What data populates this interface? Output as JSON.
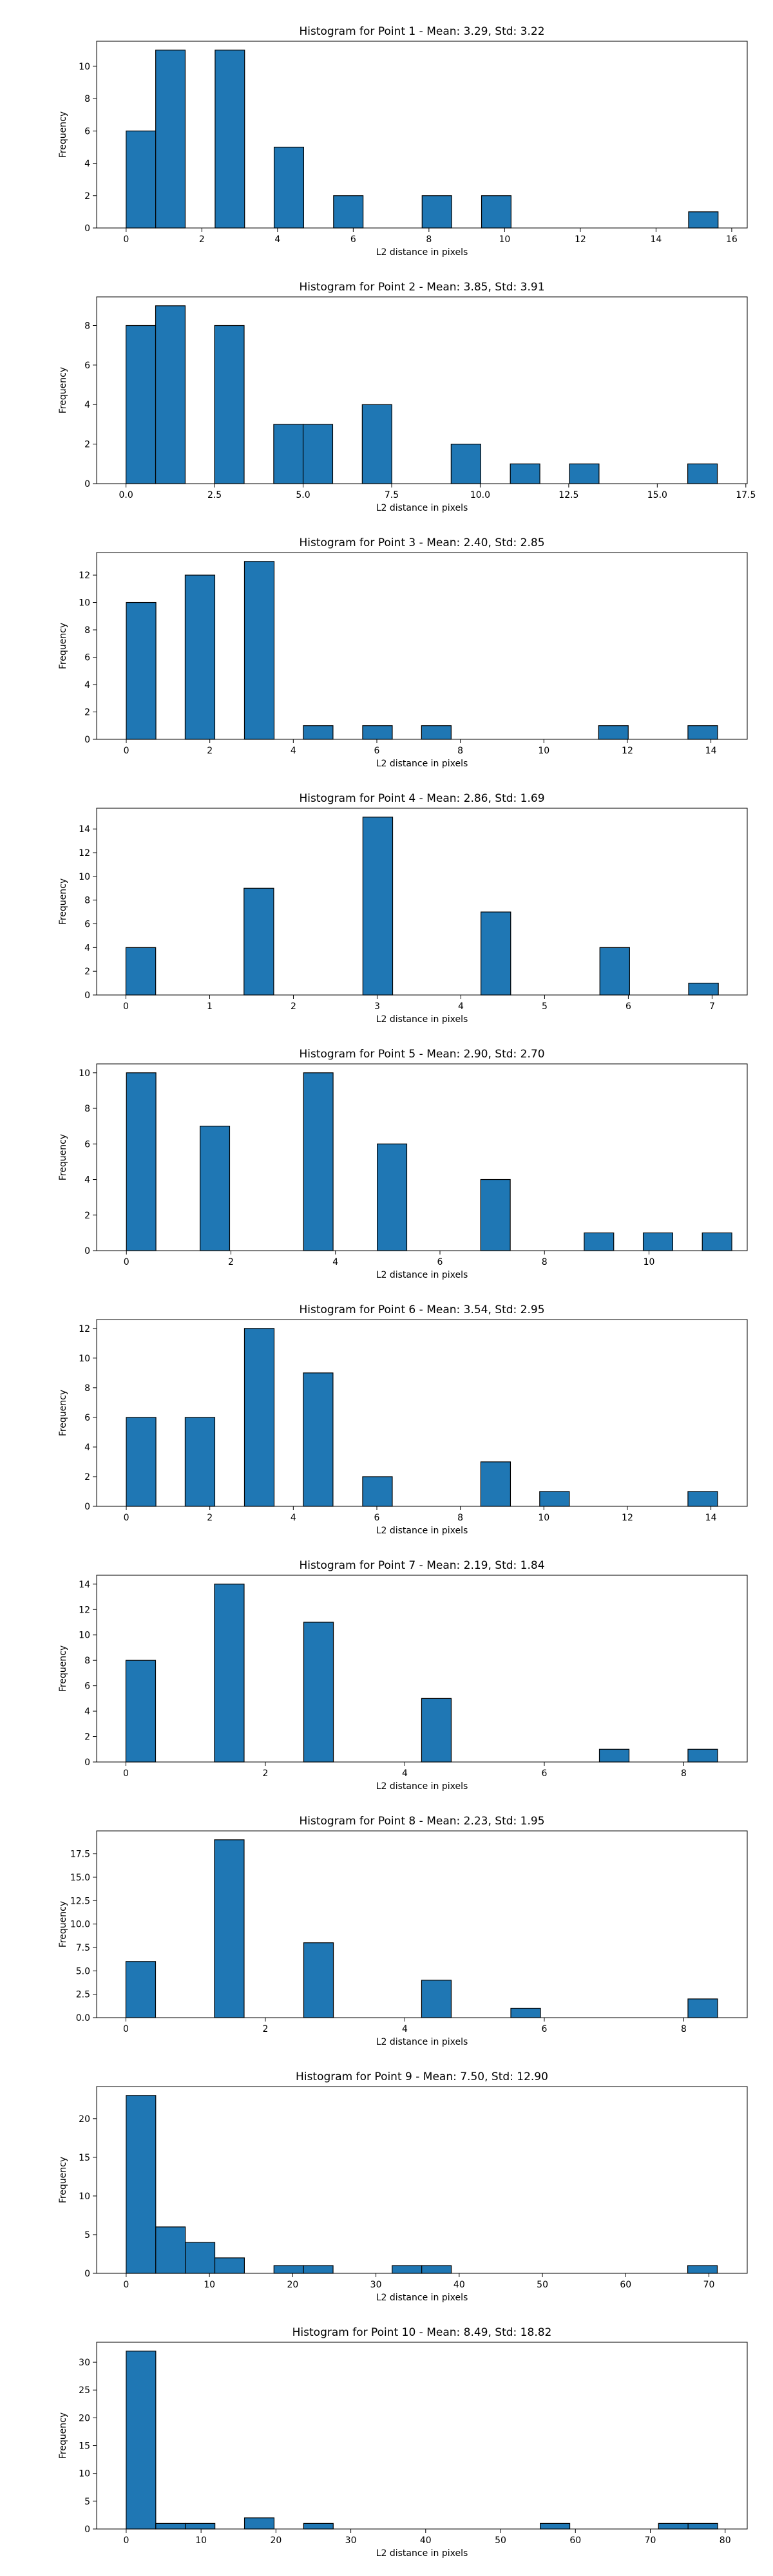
{
  "bar_color": "#1f77b4",
  "edge_color": "#000000",
  "chart_data": [
    {
      "type": "bar",
      "title": "Histogram for Point 1 - Mean: 3.29, Std: 3.22",
      "xlabel": "L2 distance in pixels",
      "ylabel": "Frequency",
      "xlim": [
        -0.78,
        16.41
      ],
      "ylim": [
        0,
        11.55
      ],
      "xticks": [
        0,
        2,
        4,
        6,
        8,
        10,
        12,
        14,
        16
      ],
      "yticks": [
        0,
        2,
        4,
        6,
        8,
        10
      ],
      "bin_width": 0.78,
      "bins": [
        [
          0,
          6
        ],
        [
          0.78,
          11
        ],
        [
          2.35,
          11
        ],
        [
          3.91,
          5
        ],
        [
          5.48,
          2
        ],
        [
          7.82,
          2
        ],
        [
          9.39,
          2
        ],
        [
          14.86,
          1
        ]
      ]
    },
    {
      "type": "bar",
      "title": "Histogram for Point 2 - Mean: 3.85, Std: 3.91",
      "xlabel": "L2 distance in pixels",
      "ylabel": "Frequency",
      "xlim": [
        -0.83,
        17.54
      ],
      "ylim": [
        0,
        9.45
      ],
      "xticks": [
        0.0,
        2.5,
        5.0,
        7.5,
        10.0,
        12.5,
        15.0,
        17.5
      ],
      "xtick_labels": [
        "0.0",
        "2.5",
        "5.0",
        "7.5",
        "10.0",
        "12.5",
        "15.0",
        "17.5"
      ],
      "yticks": [
        0,
        2,
        4,
        6,
        8
      ],
      "bin_width": 0.835,
      "bins": [
        [
          0,
          8
        ],
        [
          0.835,
          9
        ],
        [
          2.5,
          8
        ],
        [
          4.17,
          3
        ],
        [
          5.0,
          3
        ],
        [
          6.67,
          4
        ],
        [
          9.18,
          2
        ],
        [
          10.85,
          1
        ],
        [
          12.52,
          1
        ],
        [
          15.86,
          1
        ]
      ]
    },
    {
      "type": "bar",
      "title": "Histogram for Point 3 - Mean: 2.40, Std: 2.85",
      "xlabel": "L2 distance in pixels",
      "ylabel": "Frequency",
      "xlim": [
        -0.71,
        14.87
      ],
      "ylim": [
        0,
        13.65
      ],
      "xticks": [
        0,
        2,
        4,
        6,
        8,
        10,
        12,
        14
      ],
      "yticks": [
        0,
        2,
        4,
        6,
        8,
        10,
        12
      ],
      "bin_width": 0.71,
      "bins": [
        [
          0,
          10
        ],
        [
          1.41,
          12
        ],
        [
          2.83,
          13
        ],
        [
          4.24,
          1
        ],
        [
          5.66,
          1
        ],
        [
          7.07,
          1
        ],
        [
          11.31,
          1
        ],
        [
          13.45,
          1
        ]
      ]
    },
    {
      "type": "bar",
      "title": "Histogram for Point 4 - Mean: 2.86, Std: 1.69",
      "xlabel": "L2 distance in pixels",
      "ylabel": "Frequency",
      "xlim": [
        -0.35,
        7.42
      ],
      "ylim": [
        0,
        15.75
      ],
      "xticks": [
        0,
        1,
        2,
        3,
        4,
        5,
        6,
        7
      ],
      "yticks": [
        0,
        2,
        4,
        6,
        8,
        10,
        12,
        14
      ],
      "bin_width": 0.355,
      "bins": [
        [
          0,
          4
        ],
        [
          1.41,
          9
        ],
        [
          2.83,
          15
        ],
        [
          4.24,
          7
        ],
        [
          5.66,
          4
        ],
        [
          6.72,
          1
        ]
      ]
    },
    {
      "type": "bar",
      "title": "Histogram for Point 5 - Mean: 2.90, Std: 2.70",
      "xlabel": "L2 distance in pixels",
      "ylabel": "Frequency",
      "xlim": [
        -0.57,
        11.88
      ],
      "ylim": [
        0,
        10.5
      ],
      "xticks": [
        0,
        2,
        4,
        6,
        8,
        10
      ],
      "yticks": [
        0,
        2,
        4,
        6,
        8,
        10
      ],
      "bin_width": 0.565,
      "bins": [
        [
          0,
          10
        ],
        [
          1.41,
          7
        ],
        [
          3.39,
          10
        ],
        [
          4.8,
          6
        ],
        [
          6.78,
          4
        ],
        [
          8.76,
          1
        ],
        [
          9.89,
          1
        ],
        [
          11.02,
          1
        ]
      ]
    },
    {
      "type": "bar",
      "title": "Histogram for Point 6 - Mean: 3.54, Std: 2.95",
      "xlabel": "L2 distance in pixels",
      "ylabel": "Frequency",
      "xlim": [
        -0.71,
        14.87
      ],
      "ylim": [
        0,
        12.6
      ],
      "xticks": [
        0,
        2,
        4,
        6,
        8,
        10,
        12,
        14
      ],
      "yticks": [
        0,
        2,
        4,
        6,
        8,
        10,
        12
      ],
      "bin_width": 0.71,
      "bins": [
        [
          0,
          6
        ],
        [
          1.41,
          6
        ],
        [
          2.83,
          12
        ],
        [
          4.24,
          9
        ],
        [
          5.66,
          2
        ],
        [
          8.49,
          3
        ],
        [
          9.9,
          1
        ],
        [
          13.45,
          1
        ]
      ]
    },
    {
      "type": "bar",
      "title": "Histogram for Point 7 - Mean: 2.19, Std: 1.84",
      "xlabel": "L2 distance in pixels",
      "ylabel": "Frequency",
      "xlim": [
        -0.42,
        8.91
      ],
      "ylim": [
        0,
        14.7
      ],
      "xticks": [
        0,
        2,
        4,
        6,
        8
      ],
      "yticks": [
        0,
        2,
        4,
        6,
        8,
        10,
        12,
        14
      ],
      "bin_width": 0.425,
      "bins": [
        [
          0,
          8
        ],
        [
          1.27,
          14
        ],
        [
          2.55,
          11
        ],
        [
          4.24,
          5
        ],
        [
          6.79,
          1
        ],
        [
          8.06,
          1
        ]
      ]
    },
    {
      "type": "bar",
      "title": "Histogram for Point 8 - Mean: 2.23, Std: 1.95",
      "xlabel": "L2 distance in pixels",
      "ylabel": "Frequency",
      "xlim": [
        -0.42,
        8.91
      ],
      "ylim": [
        0,
        19.95
      ],
      "xticks": [
        0,
        2,
        4,
        6,
        8
      ],
      "yticks": [
        0.0,
        2.5,
        5.0,
        7.5,
        10.0,
        12.5,
        15.0,
        17.5
      ],
      "ytick_labels": [
        "0.0",
        "2.5",
        "5.0",
        "7.5",
        "10.0",
        "12.5",
        "15.0",
        "17.5"
      ],
      "bin_width": 0.425,
      "bins": [
        [
          0,
          6
        ],
        [
          1.27,
          19
        ],
        [
          2.55,
          8
        ],
        [
          4.24,
          4
        ],
        [
          5.52,
          1
        ],
        [
          8.06,
          2
        ]
      ]
    },
    {
      "type": "bar",
      "title": "Histogram for Point 9 - Mean: 7.50, Std: 12.90",
      "xlabel": "L2 distance in pixels",
      "ylabel": "Frequency",
      "xlim": [
        -3.55,
        74.6
      ],
      "ylim": [
        0,
        24.15
      ],
      "xticks": [
        0,
        10,
        20,
        30,
        40,
        50,
        60,
        70
      ],
      "yticks": [
        0,
        5,
        10,
        15,
        20
      ],
      "bin_width": 3.55,
      "bins": [
        [
          0,
          23
        ],
        [
          3.55,
          6
        ],
        [
          7.1,
          4
        ],
        [
          10.65,
          2
        ],
        [
          17.75,
          1
        ],
        [
          21.3,
          1
        ],
        [
          31.95,
          1
        ],
        [
          35.5,
          1
        ],
        [
          67.45,
          1
        ]
      ]
    },
    {
      "type": "bar",
      "title": "Histogram for Point 10 - Mean: 8.49, Std: 18.82",
      "xlabel": "L2 distance in pixels",
      "ylabel": "Frequency",
      "xlim": [
        -3.95,
        82.95
      ],
      "ylim": [
        0,
        33.6
      ],
      "xticks": [
        0,
        10,
        20,
        30,
        40,
        50,
        60,
        70,
        80
      ],
      "yticks": [
        0,
        5,
        10,
        15,
        20,
        25,
        30
      ],
      "bin_width": 3.95,
      "bins": [
        [
          0,
          32
        ],
        [
          3.95,
          1
        ],
        [
          7.9,
          1
        ],
        [
          15.8,
          2
        ],
        [
          23.7,
          1
        ],
        [
          55.3,
          1
        ],
        [
          71.1,
          1
        ],
        [
          75.05,
          1
        ]
      ]
    }
  ]
}
